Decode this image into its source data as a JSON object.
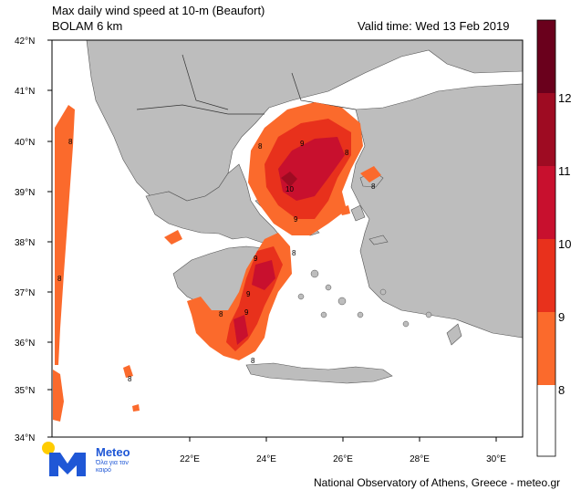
{
  "header": {
    "title_line1": "Max daily wind speed at 10-m (Beaufort)",
    "title_line2": "BOLAM 6 km",
    "valid_time": "Valid time: Wed 13 Feb 2019"
  },
  "axes": {
    "lat_labels": [
      "42°N",
      "41°N",
      "40°N",
      "39°N",
      "38°N",
      "37°N",
      "36°N",
      "35°N",
      "34°N"
    ],
    "lon_labels": [
      "22°E",
      "24°E",
      "26°E",
      "28°E",
      "30°E"
    ]
  },
  "colorbar": {
    "labels": [
      "12",
      "11",
      "10",
      "9",
      "8"
    ],
    "colors": [
      "#6a001c",
      "#9e0b22",
      "#c8102e",
      "#e8311c",
      "#fb6a2c",
      "#ffffff"
    ]
  },
  "contour_labels": [
    "8",
    "9",
    "10"
  ],
  "colors": {
    "land": "#bdbdbd",
    "sea": "#ffffff",
    "bf8": "#fb6a2c",
    "bf9": "#e8311c",
    "bf10": "#c8102e",
    "bf11": "#9e0b22",
    "bf12": "#6a001c"
  },
  "logo": {
    "name": "Meteo",
    "tagline": "Όλα για τον καιρό"
  },
  "footer": "National Observatory of Athens, Greece - meteo.gr"
}
